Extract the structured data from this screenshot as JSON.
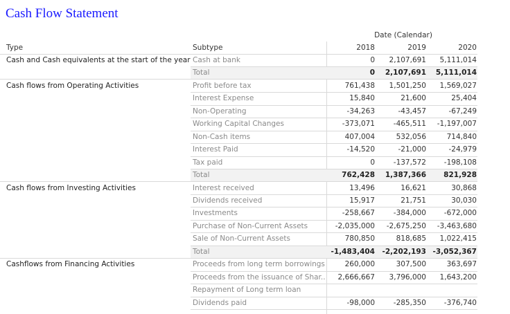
{
  "title": "Cash Flow Statement",
  "headers": {
    "date_group": "Date (Calendar)",
    "type": "Type",
    "subtype": "Subtype",
    "years": [
      "2018",
      "2019",
      "2020"
    ]
  },
  "groups": [
    {
      "type": "Cash and Cash equivalents at the start of the year",
      "rows": [
        {
          "subtype": "Cash at bank",
          "values": [
            "0",
            "2,107,691",
            "5,111,014"
          ]
        },
        {
          "subtype": "Total",
          "values": [
            "0",
            "2,107,691",
            "5,111,014"
          ],
          "total": true
        }
      ]
    },
    {
      "type": "Cash flows from Operating Activities",
      "rows": [
        {
          "subtype": "Profit before tax",
          "values": [
            "761,438",
            "1,501,250",
            "1,569,027"
          ]
        },
        {
          "subtype": "Interest Expense",
          "values": [
            "15,840",
            "21,600",
            "25,404"
          ]
        },
        {
          "subtype": "Non-Operating",
          "values": [
            "-34,263",
            "-43,457",
            "-67,249"
          ]
        },
        {
          "subtype": "Working Capital Changes",
          "values": [
            "-373,071",
            "-465,511",
            "-1,197,007"
          ]
        },
        {
          "subtype": "Non-Cash items",
          "values": [
            "407,004",
            "532,056",
            "714,840"
          ]
        },
        {
          "subtype": "Interest Paid",
          "values": [
            "-14,520",
            "-21,000",
            "-24,979"
          ]
        },
        {
          "subtype": "Tax paid",
          "values": [
            "0",
            "-137,572",
            "-198,108"
          ]
        },
        {
          "subtype": "Total",
          "values": [
            "762,428",
            "1,387,366",
            "821,928"
          ],
          "total": true
        }
      ]
    },
    {
      "type": "Cash flows from Investing Activities",
      "rows": [
        {
          "subtype": "Interest received",
          "values": [
            "13,496",
            "16,621",
            "30,868"
          ]
        },
        {
          "subtype": "Dividends received",
          "values": [
            "15,917",
            "21,751",
            "30,030"
          ]
        },
        {
          "subtype": "Investments",
          "values": [
            "-258,667",
            "-384,000",
            "-672,000"
          ]
        },
        {
          "subtype": "Purchase of Non-Current Assets",
          "values": [
            "-2,035,000",
            "-2,675,250",
            "-3,463,680"
          ]
        },
        {
          "subtype": "Sale of Non-Current Assets",
          "values": [
            "780,850",
            "818,685",
            "1,022,415"
          ]
        },
        {
          "subtype": "Total",
          "values": [
            "-1,483,404",
            "-2,202,193",
            "-3,052,367"
          ],
          "total": true
        }
      ]
    },
    {
      "type": "Cashflows from Financing Activities",
      "rows": [
        {
          "subtype": "Proceeds from long term borrowings",
          "values": [
            "260,000",
            "307,500",
            "363,697"
          ]
        },
        {
          "subtype": "Proceeds from the issuance of Shar..",
          "values": [
            "2,666,667",
            "3,796,000",
            "1,643,200"
          ]
        },
        {
          "subtype": "Repayment of Long term loan",
          "values": [
            "",
            "",
            ""
          ]
        },
        {
          "subtype": "Dividends paid",
          "values": [
            "-98,000",
            "-285,350",
            "-376,740"
          ]
        }
      ]
    }
  ]
}
